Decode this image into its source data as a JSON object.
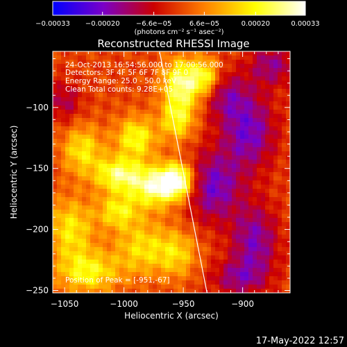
{
  "chart_data": {
    "type": "heatmap",
    "title": "Reconstructed RHESSI Image",
    "xlabel": "Heliocentric X (arcsec)",
    "ylabel": "Heliocentric Y (arcsec)",
    "xlim": [
      -1060,
      -860
    ],
    "ylim": [
      -252,
      -54
    ],
    "x_ticks": [
      -1050,
      -1000,
      -950,
      -900
    ],
    "x_tick_labels": [
      "−1050",
      "−1000",
      "−950",
      "−900"
    ],
    "y_ticks": [
      -250,
      -200,
      -150,
      -100
    ],
    "y_tick_labels": [
      "−250",
      "−200",
      "−150",
      "−100"
    ],
    "colorbar": {
      "min": -0.00033,
      "max": 0.00033,
      "tick_values": [
        -0.00033,
        -0.0002,
        -6.6e-05,
        6.6e-05,
        0.0002,
        0.00033
      ],
      "tick_labels": [
        "−0.00033",
        "−0.00020",
        "−6.6e−05",
        "6.6e−05",
        "0.00020",
        "0.00033"
      ],
      "units_label": "(photons cm⁻² s⁻¹ asec⁻²)",
      "colormap_colors": [
        "#0000ff",
        "#7a00c8",
        "#cc0000",
        "#ff8000",
        "#ffff00",
        "#ffffff"
      ]
    },
    "annotations": [
      "24-Oct-2013 16:54:56.000 to 17:00:56.000",
      "Detectors: 3F 4F 5F 6F 7F 8F 9F 0",
      "Energy Range: 25.0 - 50.0 keV",
      "Clean    Total counts: 9.28E+05"
    ],
    "peak_label": "Position of Peak = [-951,-67]",
    "peak_position": [
      -951,
      -67
    ],
    "limb_line": {
      "x": [
        -970,
        -930
      ],
      "y": [
        -54,
        -252
      ]
    },
    "source_blobs": [
      {
        "x": -955,
        "y": -160,
        "amp": 1.0,
        "sx": 10,
        "sy": 10
      },
      {
        "x": -975,
        "y": -165,
        "amp": 0.8,
        "sx": 14,
        "sy": 12
      },
      {
        "x": -1005,
        "y": -155,
        "amp": 0.75,
        "sx": 14,
        "sy": 10
      },
      {
        "x": -990,
        "y": -125,
        "amp": 0.65,
        "sx": 12,
        "sy": 12
      },
      {
        "x": -950,
        "y": -80,
        "amp": 0.85,
        "sx": 12,
        "sy": 14
      },
      {
        "x": -955,
        "y": -110,
        "amp": 0.6,
        "sx": 10,
        "sy": 12
      },
      {
        "x": -930,
        "y": -75,
        "amp": 0.55,
        "sx": 8,
        "sy": 10
      },
      {
        "x": -1035,
        "y": -135,
        "amp": 0.55,
        "sx": 12,
        "sy": 14
      },
      {
        "x": -1045,
        "y": -200,
        "amp": 0.55,
        "sx": 14,
        "sy": 18
      },
      {
        "x": -1030,
        "y": -235,
        "amp": 0.6,
        "sx": 18,
        "sy": 12
      },
      {
        "x": -985,
        "y": -215,
        "amp": 0.5,
        "sx": 16,
        "sy": 16
      },
      {
        "x": -955,
        "y": -220,
        "amp": 0.45,
        "sx": 12,
        "sy": 14
      },
      {
        "x": -1005,
        "y": -185,
        "amp": 0.55,
        "sx": 12,
        "sy": 10
      },
      {
        "x": -925,
        "y": -165,
        "amp": -0.6,
        "sx": 16,
        "sy": 20
      },
      {
        "x": -895,
        "y": -120,
        "amp": -0.6,
        "sx": 16,
        "sy": 22
      },
      {
        "x": -890,
        "y": -210,
        "amp": -0.55,
        "sx": 14,
        "sy": 22
      },
      {
        "x": -915,
        "y": -90,
        "amp": -0.4,
        "sx": 14,
        "sy": 14
      },
      {
        "x": -1050,
        "y": -95,
        "amp": -0.35,
        "sx": 10,
        "sy": 12
      },
      {
        "x": -875,
        "y": -65,
        "amp": -0.45,
        "sx": 14,
        "sy": 12
      },
      {
        "x": -905,
        "y": -240,
        "amp": -0.4,
        "sx": 16,
        "sy": 10
      }
    ]
  },
  "footer": {
    "timestamp": "17-May-2022 12:57"
  }
}
